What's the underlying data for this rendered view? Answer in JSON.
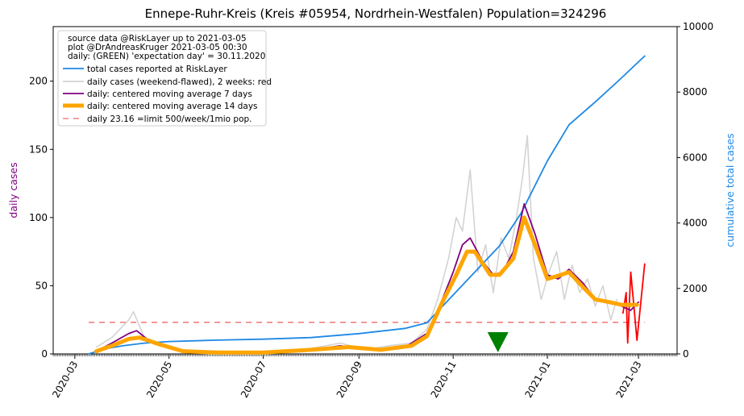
{
  "chart_data": {
    "type": "line",
    "title": "Ennepe-Ruhr-Kreis (Kreis #05954, Nordrhein-Westfalen) Population=324296",
    "ylabel_left": "daily cases",
    "ylabel_right": "cumulative total cases",
    "ylim_left": [
      0,
      240
    ],
    "ylim_right": [
      0,
      10000
    ],
    "xlim": [
      "2020-02-16",
      "2021-03-26"
    ],
    "left_ticks": [
      0,
      50,
      100,
      150,
      200
    ],
    "right_ticks": [
      0,
      2000,
      4000,
      6000,
      8000,
      10000
    ],
    "x_tick_dates": [
      "2020-03-01",
      "2020-05-01",
      "2020-07-01",
      "2020-09-01",
      "2020-11-01",
      "2021-01-01",
      "2021-03-01"
    ],
    "x_tick_labels": [
      "2020-03",
      "2020-05",
      "2020-07",
      "2020-09",
      "2020-11",
      "2021-01",
      "2021-03"
    ],
    "legend": {
      "placement": "top-left",
      "header_lines": [
        "source data @RiskLayer up to 2021-03-05",
        "plot @DrAndreasKruger 2021-03-05 00:30",
        "daily: (GREEN) 'expectation day' = 30.11.2020"
      ],
      "entries": [
        "total cases reported at RiskLayer",
        "daily cases (weekend-flawed), 2 weeks: red",
        "daily: centered moving average 7 days",
        "daily: centered moving average 14 days",
        "daily 23.16 =limit 500/week/1mio pop."
      ]
    },
    "colors": {
      "total": "#1e88e5",
      "daily": "#d3d3d3",
      "daily_recent": "#ff0000",
      "ma7": "#800080",
      "ma14": "#ffa500",
      "limit": "#f08080",
      "expectation_marker": "#008000"
    },
    "limit_value": 23.16,
    "limit_range": [
      "2020-03-10",
      "2021-03-05"
    ],
    "expectation_day": "2020-11-30",
    "series": [
      {
        "name": "total cases reported at RiskLayer",
        "axis": "right",
        "points": [
          [
            "2020-03-10",
            0
          ],
          [
            "2020-03-20",
            150
          ],
          [
            "2020-04-01",
            250
          ],
          [
            "2020-04-15",
            330
          ],
          [
            "2020-05-01",
            380
          ],
          [
            "2020-06-01",
            420
          ],
          [
            "2020-07-01",
            450
          ],
          [
            "2020-08-01",
            500
          ],
          [
            "2020-09-01",
            620
          ],
          [
            "2020-10-01",
            780
          ],
          [
            "2020-10-15",
            950
          ],
          [
            "2020-11-01",
            1800
          ],
          [
            "2020-11-15",
            2500
          ],
          [
            "2020-12-01",
            3300
          ],
          [
            "2020-12-15",
            4300
          ],
          [
            "2021-01-01",
            5900
          ],
          [
            "2021-01-15",
            7000
          ],
          [
            "2021-02-01",
            7700
          ],
          [
            "2021-02-15",
            8300
          ],
          [
            "2021-03-05",
            9100
          ]
        ]
      },
      {
        "name": "daily cases (weekend-flawed), 2 weeks: red",
        "axis": "left",
        "points": [
          [
            "2020-03-15",
            5
          ],
          [
            "2020-03-25",
            12
          ],
          [
            "2020-04-05",
            25
          ],
          [
            "2020-04-08",
            31
          ],
          [
            "2020-04-15",
            12
          ],
          [
            "2020-04-25",
            8
          ],
          [
            "2020-05-10",
            3
          ],
          [
            "2020-06-01",
            2
          ],
          [
            "2020-07-01",
            1
          ],
          [
            "2020-08-01",
            4
          ],
          [
            "2020-08-20",
            8
          ],
          [
            "2020-09-05",
            3
          ],
          [
            "2020-09-20",
            6
          ],
          [
            "2020-10-05",
            8
          ],
          [
            "2020-10-15",
            18
          ],
          [
            "2020-10-22",
            40
          ],
          [
            "2020-10-29",
            70
          ],
          [
            "2020-11-03",
            100
          ],
          [
            "2020-11-07",
            90
          ],
          [
            "2020-11-12",
            135
          ],
          [
            "2020-11-17",
            60
          ],
          [
            "2020-11-22",
            80
          ],
          [
            "2020-11-27",
            45
          ],
          [
            "2020-12-02",
            85
          ],
          [
            "2020-12-07",
            70
          ],
          [
            "2020-12-12",
            100
          ],
          [
            "2020-12-16",
            130
          ],
          [
            "2020-12-19",
            160
          ],
          [
            "2020-12-23",
            70
          ],
          [
            "2020-12-28",
            40
          ],
          [
            "2021-01-02",
            60
          ],
          [
            "2021-01-07",
            75
          ],
          [
            "2021-01-12",
            40
          ],
          [
            "2021-01-17",
            65
          ],
          [
            "2021-01-22",
            45
          ],
          [
            "2021-01-27",
            55
          ],
          [
            "2021-02-01",
            35
          ],
          [
            "2021-02-06",
            50
          ],
          [
            "2021-02-11",
            25
          ],
          [
            "2021-02-15",
            40
          ]
        ]
      },
      {
        "name": "daily cases (weekend-flawed), 2 weeks: red",
        "axis": "left",
        "points": [
          [
            "2021-02-19",
            30
          ],
          [
            "2021-02-21",
            45
          ],
          [
            "2021-02-22",
            8
          ],
          [
            "2021-02-24",
            60
          ],
          [
            "2021-02-26",
            35
          ],
          [
            "2021-02-28",
            10
          ],
          [
            "2021-03-05",
            66
          ]
        ]
      },
      {
        "name": "daily: centered moving average 7 days",
        "axis": "left",
        "points": [
          [
            "2020-03-15",
            2
          ],
          [
            "2020-03-25",
            8
          ],
          [
            "2020-04-05",
            15
          ],
          [
            "2020-04-10",
            17
          ],
          [
            "2020-04-20",
            8
          ],
          [
            "2020-05-05",
            3
          ],
          [
            "2020-06-01",
            1
          ],
          [
            "2020-07-01",
            1
          ],
          [
            "2020-08-01",
            3
          ],
          [
            "2020-08-20",
            6
          ],
          [
            "2020-09-10",
            3
          ],
          [
            "2020-10-01",
            5
          ],
          [
            "2020-10-15",
            15
          ],
          [
            "2020-10-25",
            40
          ],
          [
            "2020-11-01",
            60
          ],
          [
            "2020-11-07",
            80
          ],
          [
            "2020-11-12",
            85
          ],
          [
            "2020-11-20",
            68
          ],
          [
            "2020-11-27",
            58
          ],
          [
            "2020-12-03",
            60
          ],
          [
            "2020-12-10",
            75
          ],
          [
            "2020-12-17",
            110
          ],
          [
            "2020-12-24",
            88
          ],
          [
            "2021-01-01",
            58
          ],
          [
            "2021-01-08",
            55
          ],
          [
            "2021-01-15",
            62
          ],
          [
            "2021-01-24",
            52
          ],
          [
            "2021-02-01",
            40
          ],
          [
            "2021-02-10",
            38
          ],
          [
            "2021-02-18",
            35
          ],
          [
            "2021-02-24",
            32
          ],
          [
            "2021-03-01",
            38
          ]
        ]
      },
      {
        "name": "daily: centered moving average 14 days",
        "axis": "left",
        "points": [
          [
            "2020-03-15",
            2
          ],
          [
            "2020-03-25",
            6
          ],
          [
            "2020-04-05",
            11
          ],
          [
            "2020-04-12",
            12
          ],
          [
            "2020-04-25",
            7
          ],
          [
            "2020-05-10",
            2
          ],
          [
            "2020-06-01",
            1
          ],
          [
            "2020-07-01",
            1
          ],
          [
            "2020-08-01",
            3
          ],
          [
            "2020-08-25",
            5
          ],
          [
            "2020-09-15",
            3
          ],
          [
            "2020-10-05",
            6
          ],
          [
            "2020-10-15",
            13
          ],
          [
            "2020-10-25",
            38
          ],
          [
            "2020-11-03",
            58
          ],
          [
            "2020-11-10",
            75
          ],
          [
            "2020-11-15",
            75
          ],
          [
            "2020-11-25",
            58
          ],
          [
            "2020-12-01",
            58
          ],
          [
            "2020-12-10",
            70
          ],
          [
            "2020-12-17",
            100
          ],
          [
            "2020-12-24",
            80
          ],
          [
            "2021-01-01",
            55
          ],
          [
            "2021-01-10",
            58
          ],
          [
            "2021-01-15",
            60
          ],
          [
            "2021-01-25",
            48
          ],
          [
            "2021-02-01",
            40
          ],
          [
            "2021-02-10",
            38
          ],
          [
            "2021-02-18",
            36
          ],
          [
            "2021-02-26",
            36
          ],
          [
            "2021-02-28",
            36
          ]
        ]
      }
    ]
  }
}
